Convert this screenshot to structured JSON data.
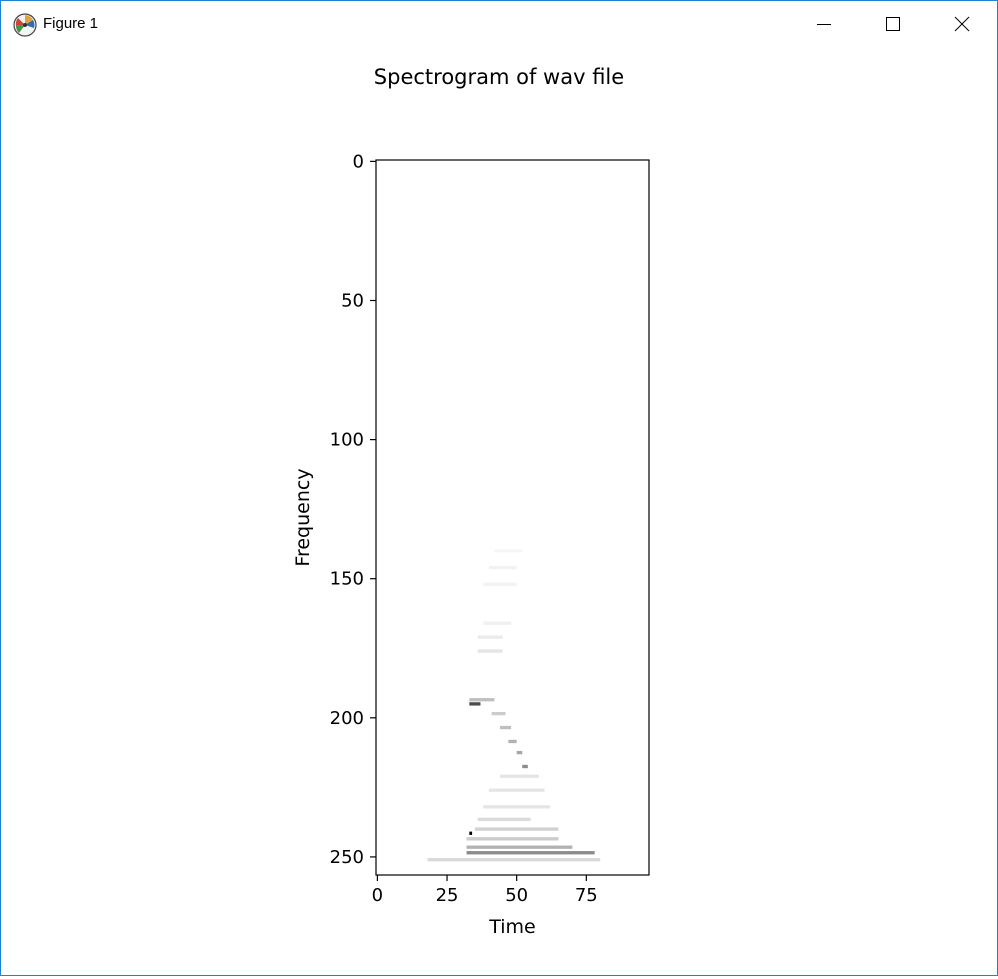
{
  "window": {
    "title": "Figure 1",
    "icons": {
      "app": "matplotlib-icon",
      "minimize": "minimize-icon",
      "maximize": "maximize-icon",
      "close": "close-icon"
    }
  },
  "chart_data": {
    "type": "heatmap",
    "title": "Spectrogram of wav file",
    "xlabel": "Time",
    "ylabel": "Frequency",
    "xlim": [
      -0.5,
      97.5
    ],
    "ylim": [
      256.5,
      -0.5
    ],
    "y_inverted": true,
    "colormap": "gray_r",
    "x_ticks": [
      0,
      25,
      50,
      75
    ],
    "x_tick_labels": [
      "0",
      "25",
      "50",
      "75"
    ],
    "y_ticks": [
      0,
      50,
      100,
      150,
      200,
      250
    ],
    "y_tick_labels": [
      "0",
      "50",
      "100",
      "150",
      "200",
      "250"
    ],
    "grid": false,
    "features": [
      {
        "x": [
          18,
          80
        ],
        "y": 251,
        "intensity": 0.15
      },
      {
        "x": [
          32,
          78
        ],
        "y": 248.5,
        "intensity": 0.45
      },
      {
        "x": [
          32,
          70
        ],
        "y": 246.5,
        "intensity": 0.3
      },
      {
        "x": [
          32,
          65
        ],
        "y": 243.5,
        "intensity": 0.2
      },
      {
        "x": [
          33,
          34
        ],
        "y": 241.5,
        "intensity": 1.0
      },
      {
        "x": [
          35,
          65
        ],
        "y": 240,
        "intensity": 0.18
      },
      {
        "x": [
          36,
          55
        ],
        "y": 236.5,
        "intensity": 0.14
      },
      {
        "x": [
          38,
          62
        ],
        "y": 232,
        "intensity": 0.1
      },
      {
        "x": [
          40,
          60
        ],
        "y": 226,
        "intensity": 0.1
      },
      {
        "x": [
          44,
          58
        ],
        "y": 221,
        "intensity": 0.1
      },
      {
        "x": [
          52,
          54
        ],
        "y": 217.5,
        "intensity": 0.45
      },
      {
        "x": [
          50,
          52
        ],
        "y": 212.5,
        "intensity": 0.35
      },
      {
        "x": [
          47,
          50
        ],
        "y": 208.5,
        "intensity": 0.3
      },
      {
        "x": [
          44,
          48
        ],
        "y": 203.5,
        "intensity": 0.25
      },
      {
        "x": [
          41,
          46
        ],
        "y": 198.5,
        "intensity": 0.2
      },
      {
        "x": [
          33,
          37
        ],
        "y": 195,
        "intensity": 0.7
      },
      {
        "x": [
          33,
          42
        ],
        "y": 193.5,
        "intensity": 0.25
      },
      {
        "x": [
          36,
          45
        ],
        "y": 176,
        "intensity": 0.1
      },
      {
        "x": [
          36,
          45
        ],
        "y": 171,
        "intensity": 0.08
      },
      {
        "x": [
          38,
          48
        ],
        "y": 166,
        "intensity": 0.06
      },
      {
        "x": [
          38,
          50
        ],
        "y": 152,
        "intensity": 0.05
      },
      {
        "x": [
          40,
          50
        ],
        "y": 146,
        "intensity": 0.05
      },
      {
        "x": [
          42,
          52
        ],
        "y": 140,
        "intensity": 0.04
      }
    ]
  }
}
